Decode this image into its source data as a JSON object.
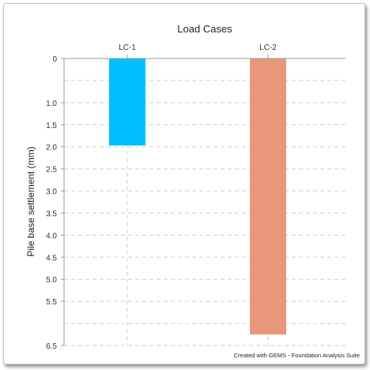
{
  "chart_data": {
    "type": "bar",
    "title": "Load Cases",
    "ylabel": "Pile base settlement (mm)",
    "xlabel": "",
    "categories": [
      "LC-1",
      "LC-2"
    ],
    "series": [
      {
        "values": [
          1.97,
          6.25
        ]
      }
    ],
    "ylim": [
      0,
      6.5
    ],
    "y_inverted": true,
    "x_axis_position": "top",
    "yticks": [
      "0",
      "1.0",
      "1.5",
      "2.0",
      "2.5",
      "3.0",
      "3.5",
      "4.0",
      "4.5",
      "5.0",
      "5.5",
      "6.5"
    ],
    "ytick_values": [
      0,
      1.0,
      1.5,
      2.0,
      2.5,
      3.0,
      3.5,
      4.0,
      4.5,
      5.0,
      5.5,
      6.5
    ],
    "grid": true,
    "colors": [
      "#00bfff",
      "#e8977b"
    ]
  },
  "footer": {
    "credit": "Created with GEMS - Foundation Analysis Suite"
  }
}
